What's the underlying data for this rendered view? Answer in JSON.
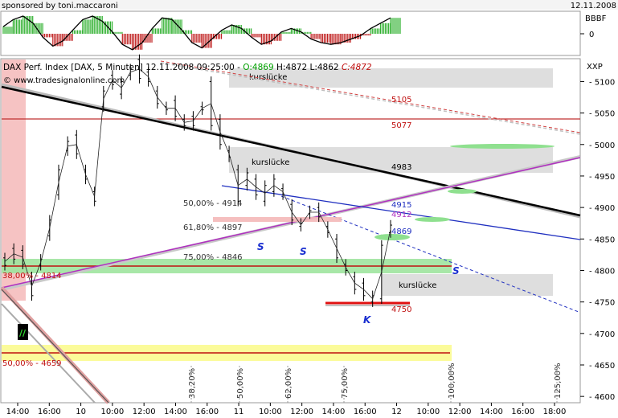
{
  "header": {
    "sponsor": "sponsored by toni.maccaroni",
    "date": "12.11.2008"
  },
  "indicator": {
    "labels": [
      "BBBF",
      "0"
    ]
  },
  "chart_info": {
    "title_line": "DAX Perf. Index [DAX, 5 Minuten] 12.11.2008 09:25:00 - ",
    "open": "O:4869",
    "high": "H:4872",
    "low": "L:4862",
    "close": "C:4872",
    "copyright": "© www.tradesignalonline.com",
    "axis_symbol": "XXP"
  },
  "annotations": {
    "gap": "kurslücke",
    "levels": [
      "5105",
      "5077",
      "4983",
      "4915",
      "4912",
      "4869",
      "4750"
    ],
    "fib_labels": [
      "50,00% - 4914",
      "61,80% - 4897",
      "75,00% - 4846",
      "38,00% - 4814",
      "50,00% - 4659"
    ],
    "s_marks": [
      "S",
      "S",
      "S"
    ],
    "k_mark": "K",
    "badge": "//"
  },
  "chart_data": {
    "type": "line",
    "x_tick_labels": [
      "14:00",
      "16:00",
      "10",
      "10:00",
      "12:00",
      "14:00",
      "16:00",
      "11",
      "10:00",
      "12:00",
      "14:00",
      "16:00",
      "12",
      "10:00",
      "12:00",
      "14:00",
      "16:00",
      "18:00"
    ],
    "y_ticks": [
      4600,
      4650,
      4700,
      4750,
      4800,
      4850,
      4900,
      4950,
      5000,
      5050,
      5100
    ],
    "ylim": [
      4590,
      5135
    ],
    "fib_axis_labels": [
      "38,20%",
      "50,00%",
      "62,00%",
      "75,00%",
      "100,00%",
      "125,00%"
    ],
    "price_path": [
      [
        4820,
        4808
      ],
      [
        4835,
        4818
      ],
      [
        4832,
        4810
      ],
      [
        4790,
        4760
      ],
      [
        4808,
        4818
      ],
      [
        4855,
        4880
      ],
      [
        4920,
        4960
      ],
      [
        4990,
        5005
      ],
      [
        5015,
        4985
      ],
      [
        4960,
        4945
      ],
      [
        4925,
        4910
      ],
      [
        5060,
        5085
      ],
      [
        5110,
        5095
      ],
      [
        5080,
        5100
      ],
      [
        5110,
        5120
      ],
      [
        5135,
        5105
      ],
      [
        5115,
        5100
      ],
      [
        5085,
        5065
      ],
      [
        5060,
        5055
      ],
      [
        5070,
        5045
      ],
      [
        5040,
        5030
      ],
      [
        5045,
        5030
      ],
      [
        5060,
        5055
      ],
      [
        5100,
        5030
      ],
      [
        5040,
        5000
      ],
      [
        4990,
        4980
      ],
      [
        4960,
        4910
      ],
      [
        4935,
        4955
      ],
      [
        4945,
        4920
      ],
      [
        4910,
        4935
      ],
      [
        4925,
        4945
      ],
      [
        4930,
        4920
      ],
      [
        4905,
        4880
      ],
      [
        4870,
        4875
      ],
      [
        4890,
        4895
      ],
      [
        4900,
        4885
      ],
      [
        4870,
        4860
      ],
      [
        4850,
        4820
      ],
      [
        4810,
        4800
      ],
      [
        4790,
        4770
      ],
      [
        4780,
        4760
      ],
      [
        4750,
        4760
      ],
      [
        4755,
        4840
      ],
      [
        4860,
        4872
      ]
    ],
    "osc_values": [
      0.4,
      0.8,
      1.0,
      0.6,
      -0.2,
      -0.7,
      -0.4,
      0.2,
      0.8,
      1.0,
      0.7,
      0.1,
      -0.6,
      -0.9,
      -0.5,
      0.3,
      0.9,
      0.8,
      0.2,
      -0.5,
      -0.8,
      -0.3,
      0.2,
      0.5,
      0.3,
      -0.2,
      -0.6,
      -0.4,
      0.1,
      0.3,
      0.1,
      -0.3,
      -0.5,
      -0.6,
      -0.5,
      -0.3,
      -0.1,
      0.3,
      0.6,
      0.9
    ]
  }
}
